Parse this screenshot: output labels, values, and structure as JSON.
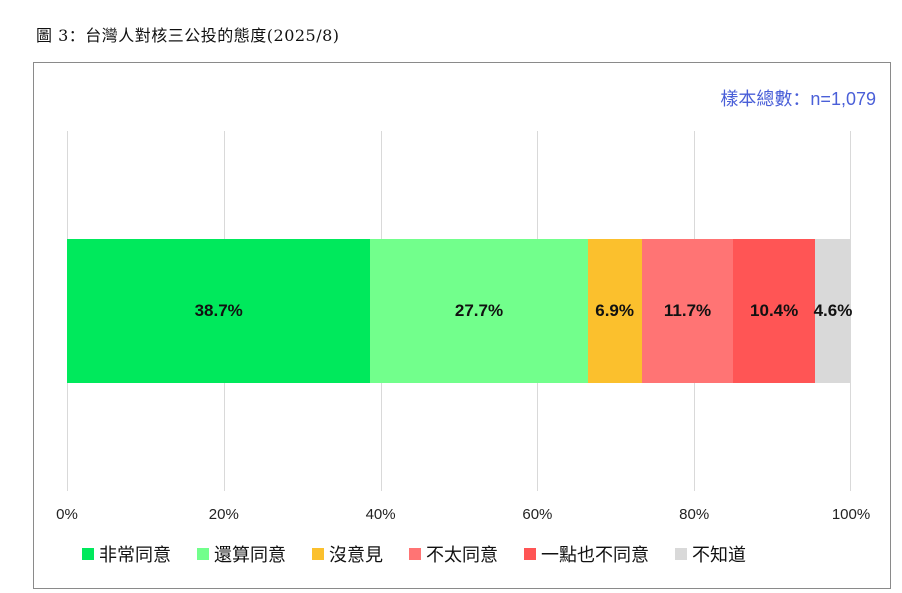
{
  "figure_title": "圖 3：台灣人對核三公投的態度(2025/8)",
  "sample_label": "樣本總數：n=1,079",
  "chart_data": {
    "type": "bar",
    "orientation": "horizontal",
    "stacked": true,
    "title": "圖 3：台灣人對核三公投的態度(2025/8)",
    "annotation": "樣本總數：n=1,079",
    "categories": [
      "台灣人對核三公投的態度"
    ],
    "series": [
      {
        "name": "非常同意",
        "values": [
          38.7
        ],
        "color": "#00e95c",
        "label": "38.7%"
      },
      {
        "name": "還算同意",
        "values": [
          27.7
        ],
        "color": "#72ff8c",
        "label": "27.7%"
      },
      {
        "name": "沒意見",
        "values": [
          6.9
        ],
        "color": "#fbc02d",
        "label": "6.9%"
      },
      {
        "name": "不太同意",
        "values": [
          11.7
        ],
        "color": "#ff7474",
        "label": "11.7%"
      },
      {
        "name": "一點也不同意",
        "values": [
          10.4
        ],
        "color": "#ff5555",
        "label": "10.4%"
      },
      {
        "name": "不知道",
        "values": [
          4.6
        ],
        "color": "#d9d9d9",
        "label": "4.6%"
      }
    ],
    "xlabel": "",
    "ylabel": "",
    "xlim": [
      0,
      100
    ],
    "x_ticks": [
      "0%",
      "20%",
      "40%",
      "60%",
      "80%",
      "100%"
    ],
    "grid": "vertical",
    "legend_position": "bottom"
  },
  "ticks": [
    "0%",
    "20%",
    "40%",
    "60%",
    "80%",
    "100%"
  ],
  "legend": [
    {
      "label": "非常同意",
      "color": "#00e95c"
    },
    {
      "label": "還算同意",
      "color": "#72ff8c"
    },
    {
      "label": "沒意見",
      "color": "#fbc02d"
    },
    {
      "label": "不太同意",
      "color": "#ff7474"
    },
    {
      "label": "一點也不同意",
      "color": "#ff5555"
    },
    {
      "label": "不知道",
      "color": "#d9d9d9"
    }
  ]
}
